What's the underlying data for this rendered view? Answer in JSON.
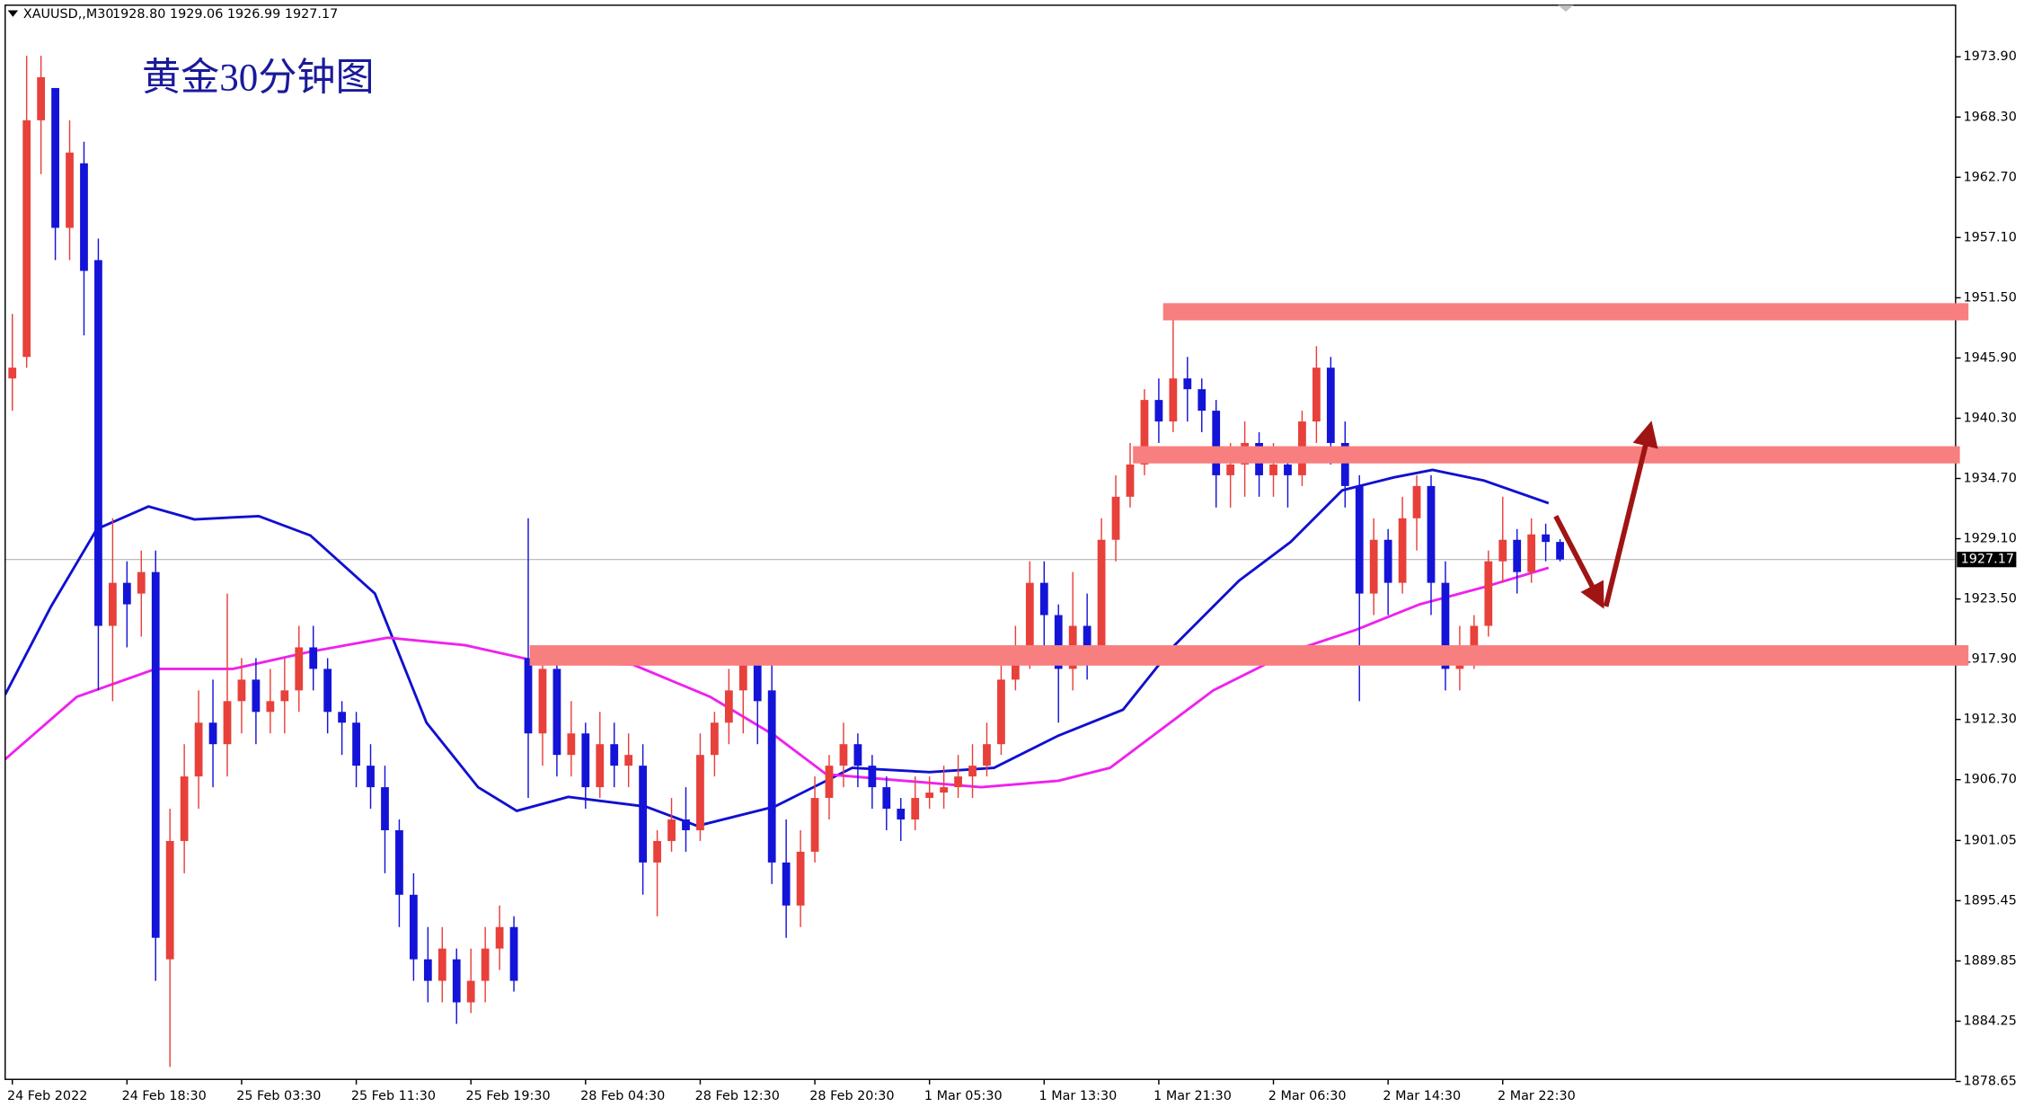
{
  "chart_data": {
    "type": "candlestick",
    "symbol": "XAUUSD,,M30",
    "quote": "1928.80 1929.06 1926.99 1927.17",
    "title": "黄金30分钟图",
    "up_color": "#e8403a",
    "down_color": "#1414d8",
    "xlim": [
      -0.5,
      135.6
    ],
    "ylim": [
      1878.6,
      1978.7
    ],
    "yticks": [
      {
        "value": 1973.9,
        "label": "1973.90"
      },
      {
        "value": 1968.3,
        "label": "1968.30"
      },
      {
        "value": 1962.7,
        "label": "1962.70"
      },
      {
        "value": 1957.1,
        "label": "1957.10"
      },
      {
        "value": 1951.5,
        "label": "1951.50"
      },
      {
        "value": 1945.9,
        "label": "1945.90"
      },
      {
        "value": 1940.3,
        "label": "1940.30"
      },
      {
        "value": 1934.7,
        "label": "1934.70"
      },
      {
        "value": 1929.1,
        "label": "1929.10"
      },
      {
        "value": 1923.5,
        "label": "1923.50"
      },
      {
        "value": 1917.9,
        "label": "1917.90"
      },
      {
        "value": 1912.3,
        "label": "1912.30"
      },
      {
        "value": 1906.7,
        "label": "1906.70"
      },
      {
        "value": 1901.05,
        "label": "1901.05"
      },
      {
        "value": 1895.45,
        "label": "1895.45"
      },
      {
        "value": 1889.85,
        "label": "1889.85"
      },
      {
        "value": 1884.25,
        "label": "1884.25"
      },
      {
        "value": 1878.65,
        "label": "1878.65"
      }
    ],
    "xticks": [
      {
        "value": 0,
        "label": "24 Feb 2022"
      },
      {
        "value": 8,
        "label": "24 Feb 18:30"
      },
      {
        "value": 16,
        "label": "25 Feb 03:30"
      },
      {
        "value": 24,
        "label": "25 Feb 11:30"
      },
      {
        "value": 32,
        "label": "25 Feb 19:30"
      },
      {
        "value": 40,
        "label": "28 Feb 04:30"
      },
      {
        "value": 48,
        "label": "28 Feb 12:30"
      },
      {
        "value": 56,
        "label": "28 Feb 20:30"
      },
      {
        "value": 64,
        "label": "1 Mar 05:30"
      },
      {
        "value": 72,
        "label": "1 Mar 13:30"
      },
      {
        "value": 80,
        "label": "1 Mar 21:30"
      },
      {
        "value": 88,
        "label": "2 Mar 06:30"
      },
      {
        "value": 96,
        "label": "2 Mar 14:30"
      },
      {
        "value": 104,
        "label": "2 Mar 22:30"
      }
    ],
    "current_price": {
      "value": 1927.17,
      "label": "1927.17"
    },
    "candles": [
      [
        1944,
        1950,
        1941,
        1945
      ],
      [
        1946,
        1974,
        1945,
        1968
      ],
      [
        1968,
        1974,
        1963,
        1972
      ],
      [
        1971,
        1971,
        1955,
        1958
      ],
      [
        1958,
        1968,
        1955,
        1965
      ],
      [
        1964,
        1966,
        1948,
        1954
      ],
      [
        1955,
        1957,
        1915,
        1921
      ],
      [
        1921,
        1931,
        1914,
        1925
      ],
      [
        1925,
        1927,
        1919,
        1923
      ],
      [
        1924,
        1928,
        1920,
        1926
      ],
      [
        1926,
        1928,
        1888,
        1892
      ],
      [
        1890,
        1904,
        1880,
        1901
      ],
      [
        1901,
        1910,
        1898,
        1907
      ],
      [
        1907,
        1915,
        1904,
        1912
      ],
      [
        1912,
        1916,
        1906,
        1910
      ],
      [
        1910,
        1924,
        1907,
        1914
      ],
      [
        1914,
        1918,
        1911,
        1916
      ],
      [
        1916,
        1918,
        1910,
        1913
      ],
      [
        1913,
        1917,
        1911,
        1914
      ],
      [
        1914,
        1918,
        1911,
        1915
      ],
      [
        1915,
        1921,
        1913,
        1919
      ],
      [
        1919,
        1921,
        1915,
        1917
      ],
      [
        1917,
        1918,
        1911,
        1913
      ],
      [
        1913,
        1914,
        1909,
        1912
      ],
      [
        1912,
        1913,
        1906,
        1908
      ],
      [
        1908,
        1910,
        1904,
        1906
      ],
      [
        1906,
        1908,
        1898,
        1902
      ],
      [
        1902,
        1903,
        1893,
        1896
      ],
      [
        1896,
        1898,
        1888,
        1890
      ],
      [
        1890,
        1893,
        1886,
        1888
      ],
      [
        1888,
        1893,
        1886,
        1891
      ],
      [
        1890,
        1891,
        1884,
        1886
      ],
      [
        1886,
        1891,
        1885,
        1888
      ],
      [
        1888,
        1893,
        1886,
        1891
      ],
      [
        1891,
        1895,
        1889,
        1893
      ],
      [
        1893,
        1894,
        1887,
        1888
      ],
      [
        1918,
        1931,
        1905,
        1911
      ],
      [
        1911,
        1919,
        1908,
        1917
      ],
      [
        1917,
        1918,
        1907,
        1909
      ],
      [
        1909,
        1914,
        1907,
        1911
      ],
      [
        1911,
        1912,
        1904,
        1906
      ],
      [
        1906,
        1913,
        1905,
        1910
      ],
      [
        1910,
        1912,
        1906,
        1908
      ],
      [
        1908,
        1911,
        1906,
        1909
      ],
      [
        1908,
        1910,
        1896,
        1899
      ],
      [
        1899,
        1902,
        1894,
        1901
      ],
      [
        1901,
        1905,
        1900,
        1903
      ],
      [
        1903,
        1906,
        1900,
        1902
      ],
      [
        1902,
        1911,
        1901,
        1909
      ],
      [
        1909,
        1913,
        1907,
        1912
      ],
      [
        1912,
        1917,
        1910,
        1915
      ],
      [
        1915,
        1919,
        1911,
        1918
      ],
      [
        1918,
        1919,
        1910,
        1914
      ],
      [
        1915,
        1918,
        1897,
        1899
      ],
      [
        1899,
        1903,
        1892,
        1895
      ],
      [
        1895,
        1902,
        1893,
        1900
      ],
      [
        1900,
        1907,
        1899,
        1905
      ],
      [
        1905,
        1909,
        1903,
        1908
      ],
      [
        1908,
        1912,
        1906,
        1910
      ],
      [
        1910,
        1911,
        1906,
        1908
      ],
      [
        1908,
        1909,
        1904,
        1906
      ],
      [
        1906,
        1907,
        1902,
        1904
      ],
      [
        1904,
        1905,
        1901,
        1903
      ],
      [
        1903,
        1907,
        1902,
        1905
      ],
      [
        1905,
        1907,
        1904,
        1905.5
      ],
      [
        1905.5,
        1908,
        1904,
        1906
      ],
      [
        1906,
        1909,
        1905,
        1907
      ],
      [
        1907,
        1910,
        1905,
        1908
      ],
      [
        1908,
        1912,
        1907,
        1910
      ],
      [
        1910,
        1918,
        1909,
        1916
      ],
      [
        1916,
        1921,
        1915,
        1919
      ],
      [
        1919,
        1927,
        1917,
        1925
      ],
      [
        1925,
        1927,
        1919,
        1922
      ],
      [
        1922,
        1923,
        1912,
        1917
      ],
      [
        1917,
        1926,
        1915,
        1921
      ],
      [
        1921,
        1924,
        1916,
        1919
      ],
      [
        1919,
        1931,
        1918,
        1929
      ],
      [
        1929,
        1935,
        1927,
        1933
      ],
      [
        1933,
        1938,
        1932,
        1936
      ],
      [
        1936,
        1943,
        1935,
        1942
      ],
      [
        1942,
        1944,
        1938,
        1940
      ],
      [
        1940,
        1950,
        1939,
        1944
      ],
      [
        1944,
        1946,
        1940,
        1943
      ],
      [
        1943,
        1944,
        1939,
        1941
      ],
      [
        1941,
        1942,
        1932,
        1935
      ],
      [
        1935,
        1938,
        1932,
        1936
      ],
      [
        1936,
        1940,
        1933,
        1938
      ],
      [
        1938,
        1939,
        1933,
        1935
      ],
      [
        1935,
        1938,
        1933,
        1936
      ],
      [
        1936,
        1937,
        1932,
        1935
      ],
      [
        1935,
        1941,
        1934,
        1940
      ],
      [
        1940,
        1947,
        1938,
        1945
      ],
      [
        1945,
        1946,
        1936,
        1938
      ],
      [
        1938,
        1940,
        1932,
        1934
      ],
      [
        1934,
        1935,
        1914,
        1924
      ],
      [
        1924,
        1931,
        1922,
        1929
      ],
      [
        1929,
        1930,
        1922,
        1925
      ],
      [
        1925,
        1933,
        1924,
        1931
      ],
      [
        1931,
        1935,
        1928,
        1934
      ],
      [
        1934,
        1935,
        1922,
        1925
      ],
      [
        1925,
        1927,
        1915,
        1917
      ],
      [
        1917,
        1921,
        1915,
        1919
      ],
      [
        1919,
        1922,
        1917,
        1921
      ],
      [
        1921,
        1928,
        1920,
        1927
      ],
      [
        1927,
        1933,
        1925,
        1929
      ],
      [
        1929,
        1930,
        1924,
        1926
      ],
      [
        1926,
        1931,
        1925,
        1929.5
      ],
      [
        1929.5,
        1930.5,
        1927,
        1928.8
      ],
      [
        1928.8,
        1929.06,
        1926.99,
        1927.17
      ]
    ],
    "series": [
      {
        "color": "#1010d0",
        "x": [
          -0.5,
          2.7,
          5.9,
          9.5,
          12.7,
          17.2,
          20.8,
          25.3,
          28.9,
          32.5,
          35.2,
          38.8,
          44.2,
          47.8,
          53.2,
          58.6,
          64,
          68.5,
          73,
          77.5,
          81.1,
          85.6,
          89.2,
          92.8,
          96.4,
          99.1,
          102.7,
          107.2
        ],
        "values": [
          1914.6,
          1922.8,
          1930,
          1932.1,
          1930.9,
          1931.2,
          1929.4,
          1924,
          1912,
          1906,
          1903.8,
          1905.1,
          1904.2,
          1902.4,
          1904.2,
          1907.8,
          1907.4,
          1907.8,
          1910.8,
          1913.2,
          1919.2,
          1925.2,
          1928.8,
          1933.6,
          1934.8,
          1935.5,
          1934.5,
          1932.4
        ]
      },
      {
        "color": "#ee22ee",
        "x": [
          -0.5,
          4.5,
          10,
          15.4,
          20.8,
          26.2,
          31.6,
          37,
          43.3,
          48.7,
          53.2,
          56.8,
          62.2,
          67.6,
          73,
          76.6,
          80.2,
          83.8,
          89.2,
          93.7,
          98.2,
          102.7,
          107.2
        ],
        "values": [
          1908.6,
          1914.4,
          1917,
          1917,
          1918.6,
          1919.9,
          1919.2,
          1917.6,
          1917.4,
          1914.4,
          1910.8,
          1907.2,
          1906.6,
          1906,
          1906.6,
          1907.8,
          1911.4,
          1915,
          1918.6,
          1920.6,
          1923,
          1924.6,
          1926.4
        ]
      }
    ],
    "zones": [
      {
        "x": [
          80.3,
          136.5
        ],
        "y": [
          1949.4,
          1951.0
        ]
      },
      {
        "x": [
          78.2,
          135.9
        ],
        "y": [
          1936.1,
          1937.7
        ]
      },
      {
        "x": [
          36.1,
          136.5
        ],
        "y": [
          1917.3,
          1919.2
        ]
      }
    ],
    "zone_color": "#f87f7f",
    "arrow_color": "#a01414",
    "arrows": [
      {
        "x": [
          107.7,
          110.9
        ],
        "y": [
          1931.2,
          1923.0
        ]
      },
      {
        "x": [
          111.2,
          114.3
        ],
        "y": [
          1922.8,
          1939.6
        ]
      }
    ]
  }
}
